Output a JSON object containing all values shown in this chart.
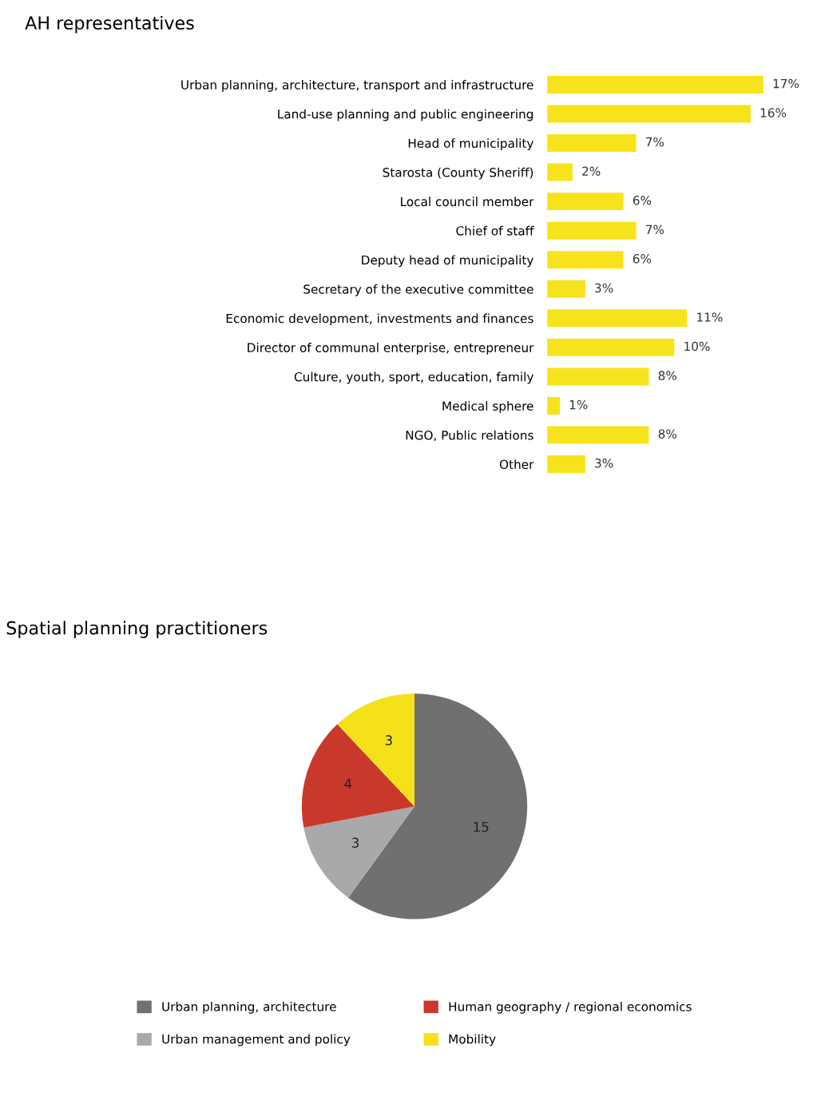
{
  "chart_data": [
    {
      "type": "bar",
      "orientation": "horizontal",
      "title": "AH representatives",
      "categories": [
        "Urban planning, architecture, transport and infrastructure",
        "Land-use planning and public engineering",
        "Head of municipality",
        "Starosta (County Sheriff)",
        "Local council member",
        "Chief of staff",
        "Deputy head of municipality",
        "Secretary of the executive committee",
        "Economic development, investments and finances",
        "Director of communal enterprise, entrepreneur",
        "Culture, youth, sport, education, family",
        "Medical sphere",
        "NGO, Public relations",
        "Other"
      ],
      "values": [
        17,
        16,
        7,
        2,
        6,
        7,
        6,
        3,
        11,
        10,
        8,
        1,
        8,
        3
      ],
      "value_labels": [
        "17%",
        "16%",
        "7%",
        "2%",
        "6%",
        "7%",
        "6%",
        "3%",
        "11%",
        "10%",
        "8%",
        "1%",
        "8%",
        "3%"
      ],
      "color": "#f7e31b"
    },
    {
      "type": "pie",
      "title": "Spatial planning practitioners",
      "categories": [
        "Urban planning, architecture",
        "Urban management and policy",
        "Human geography / regional economics",
        "Mobility"
      ],
      "values": [
        15,
        3,
        4,
        3
      ],
      "colors": [
        "#707070",
        "#a9a9a9",
        "#c9392b",
        "#f5e11a"
      ],
      "data_labels": true,
      "legend": "bottom"
    }
  ]
}
